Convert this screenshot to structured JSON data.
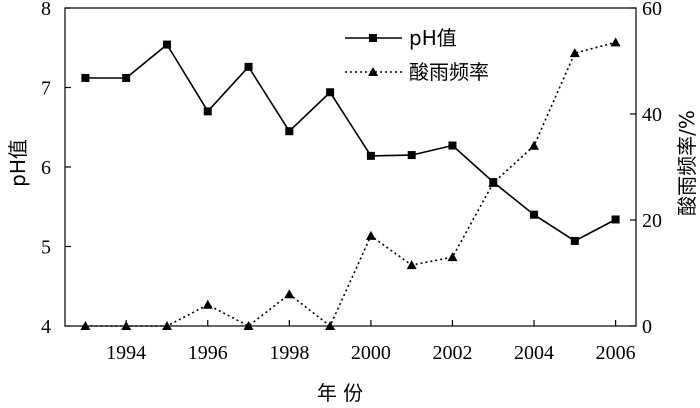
{
  "chart_data": {
    "type": "line",
    "x": [
      1993,
      1994,
      1995,
      1996,
      1997,
      1998,
      1999,
      2000,
      2001,
      2002,
      2003,
      2004,
      2005,
      2006
    ],
    "x_ticks": [
      1994,
      1996,
      1998,
      2000,
      2002,
      2004,
      2006
    ],
    "xlim": [
      1992.5,
      2006.5
    ],
    "xlabel": "年 份",
    "y_left": {
      "label": "pH值",
      "lim": [
        4,
        8
      ],
      "ticks": [
        4,
        5,
        6,
        7,
        8
      ]
    },
    "y_right": {
      "label": "酸雨频率/%",
      "lim": [
        0,
        60
      ],
      "ticks": [
        0,
        20,
        40,
        60
      ]
    },
    "series": [
      {
        "name": "pH值",
        "axis": "left",
        "marker": "square",
        "style": "solid",
        "values": [
          7.12,
          7.12,
          7.54,
          6.7,
          7.26,
          6.45,
          6.94,
          6.14,
          6.15,
          6.27,
          5.81,
          5.4,
          5.07,
          5.34
        ]
      },
      {
        "name": "酸雨频率",
        "axis": "right",
        "marker": "triangle",
        "style": "dotted",
        "values": [
          0,
          0,
          0,
          4,
          0,
          6,
          0,
          17,
          11.5,
          13,
          27,
          34,
          51.5,
          53.5
        ]
      }
    ],
    "legend": {
      "position": "top-right"
    },
    "grid": false
  }
}
